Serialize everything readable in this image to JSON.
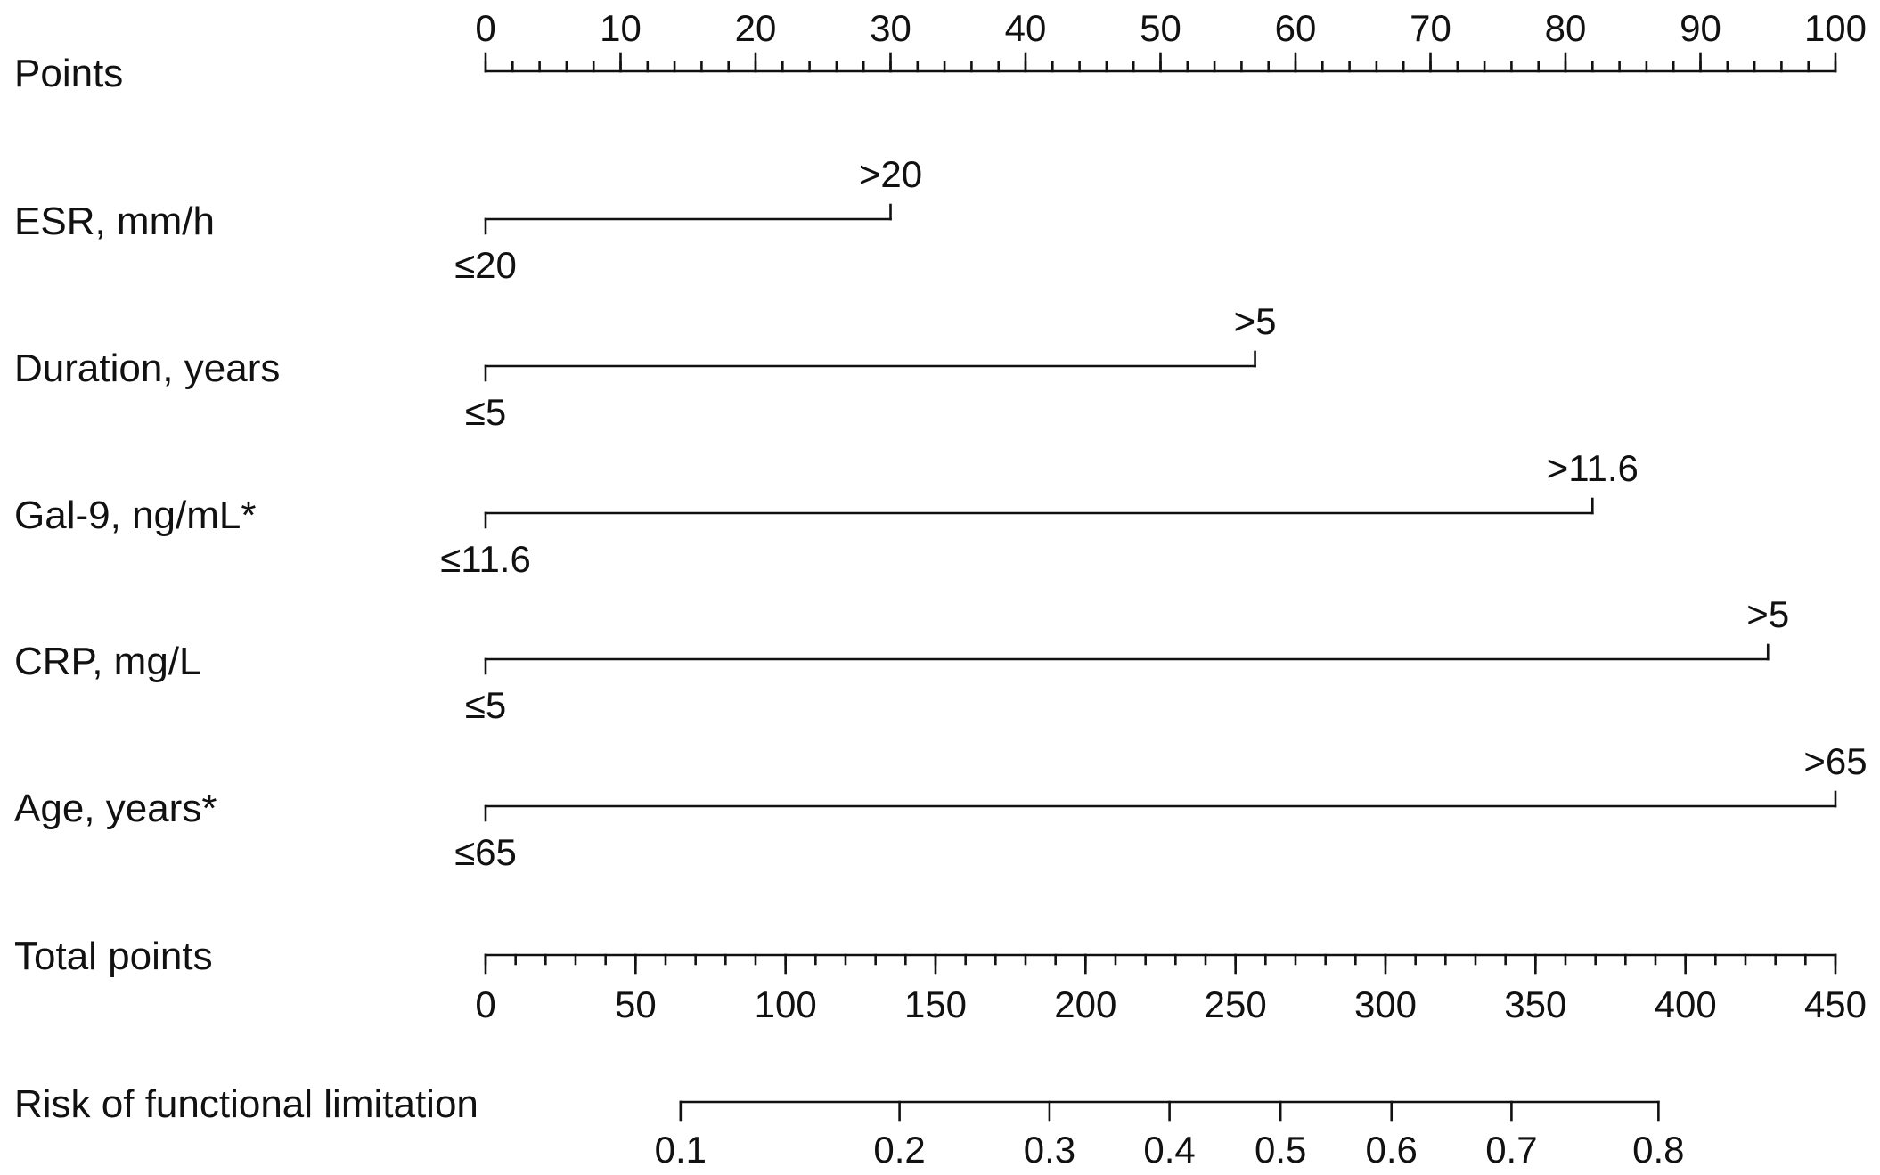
{
  "chart_data": {
    "type": "nomogram",
    "points_axis": {
      "label": "Points",
      "min": 0,
      "max": 100,
      "major_ticks": [
        0,
        10,
        20,
        30,
        40,
        50,
        60,
        70,
        80,
        90,
        100
      ],
      "minor_step": 2
    },
    "variables": [
      {
        "label": "ESR, mm/h",
        "levels": [
          {
            "label": "≤20",
            "points": 0
          },
          {
            "label": ">20",
            "points": 30
          }
        ]
      },
      {
        "label": "Duration, years",
        "levels": [
          {
            "label": "≤5",
            "points": 0
          },
          {
            "label": ">5",
            "points": 57
          }
        ]
      },
      {
        "label": "Gal-9, ng/mL*",
        "levels": [
          {
            "label": "≤11.6",
            "points": 0
          },
          {
            "label": ">11.6",
            "points": 82
          }
        ]
      },
      {
        "label": "CRP, mg/L",
        "levels": [
          {
            "label": "≤5",
            "points": 0
          },
          {
            "label": ">5",
            "points": 95
          }
        ]
      },
      {
        "label": "Age, years*",
        "levels": [
          {
            "label": "≤65",
            "points": 0
          },
          {
            "label": ">65",
            "points": 100
          }
        ]
      }
    ],
    "total_points_axis": {
      "label": "Total points",
      "min": 0,
      "max": 450,
      "major_ticks": [
        0,
        50,
        100,
        150,
        200,
        250,
        300,
        350,
        400,
        450
      ],
      "minor_step": 10
    },
    "risk_axis": {
      "label": "Risk of functional limitation",
      "ticks": [
        {
          "label": "0.1",
          "total_points": 65
        },
        {
          "label": "0.2",
          "total_points": 138
        },
        {
          "label": "0.3",
          "total_points": 188
        },
        {
          "label": "0.4",
          "total_points": 228
        },
        {
          "label": "0.5",
          "total_points": 265
        },
        {
          "label": "0.6",
          "total_points": 302
        },
        {
          "label": "0.7",
          "total_points": 342
        },
        {
          "label": "0.8",
          "total_points": 391
        }
      ]
    }
  }
}
